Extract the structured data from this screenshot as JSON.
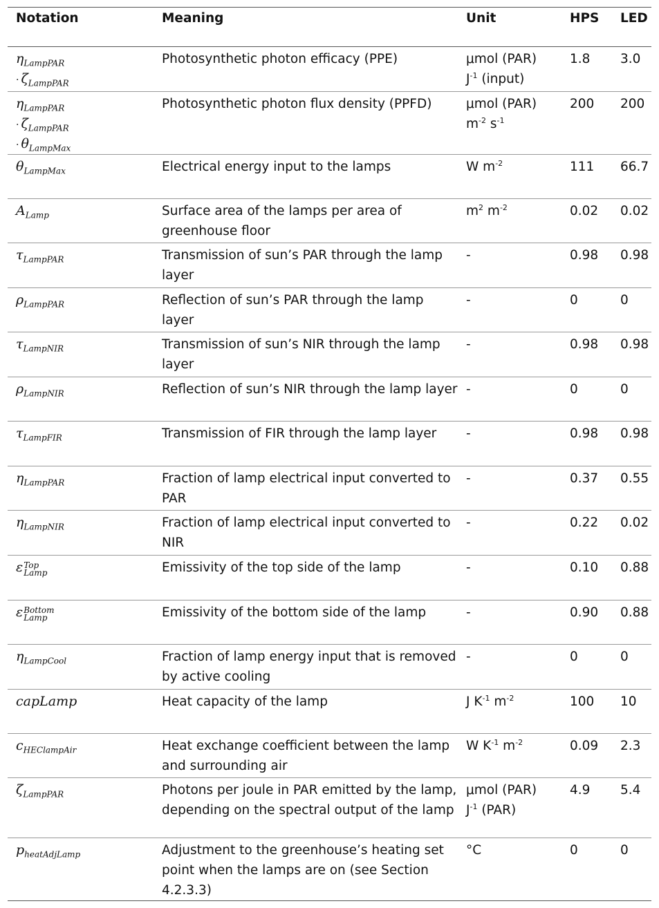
{
  "headers": {
    "notation": "Notation",
    "meaning": "Meaning",
    "unit": "Unit",
    "hps": "HPS",
    "led": "LED"
  },
  "rows": [
    {
      "notation": [
        {
          "dot": false,
          "base": "η",
          "sub": "LampPAR"
        },
        {
          "dot": true,
          "base": "ζ",
          "sub": "LampPAR"
        }
      ],
      "meaning": "Photosynthetic photon efficacy (PPE)",
      "unit": [
        [
          "μmol (PAR)"
        ],
        [
          "J",
          {
            "sup": "-1"
          },
          " (input)"
        ]
      ],
      "hps": "1.8",
      "led": "3.0"
    },
    {
      "notation": [
        {
          "dot": false,
          "base": "η",
          "sub": "LampPAR"
        },
        {
          "dot": true,
          "base": "ζ",
          "sub": "LampPAR"
        },
        {
          "dot": true,
          "base": "θ",
          "sub": "LampMax"
        }
      ],
      "meaning": "Photosynthetic photon flux density (PPFD)",
      "unit": [
        [
          "μmol (PAR)"
        ],
        [
          "m",
          {
            "sup": "-2"
          },
          " s",
          {
            "sup": "-1"
          }
        ]
      ],
      "hps": "200",
      "led": "200"
    },
    {
      "notation": [
        {
          "dot": false,
          "base": "θ",
          "sub": "LampMax"
        }
      ],
      "meaning": "Electrical energy input to the lamps",
      "unit": [
        [
          "W m",
          {
            "sup": "-2"
          }
        ]
      ],
      "hps": "111",
      "led": "66.7"
    },
    {
      "notation": [
        {
          "dot": false,
          "base": "A",
          "sub": "Lamp"
        }
      ],
      "meaning": "Surface area of the lamps per area of greenhouse floor",
      "unit": [
        [
          "m",
          {
            "sup": "2"
          },
          " m",
          {
            "sup": "-2"
          }
        ]
      ],
      "hps": "0.02",
      "led": "0.02"
    },
    {
      "notation": [
        {
          "dot": false,
          "base": "τ",
          "sub": "LampPAR"
        }
      ],
      "meaning": "Transmission of sun’s PAR through the lamp layer",
      "unit": [
        [
          "-"
        ]
      ],
      "hps": "0.98",
      "led": "0.98"
    },
    {
      "notation": [
        {
          "dot": false,
          "base": "ρ",
          "sub": "LampPAR"
        }
      ],
      "meaning": "Reflection of sun’s PAR through the lamp layer",
      "unit": [
        [
          "-"
        ]
      ],
      "hps": "0",
      "led": "0"
    },
    {
      "notation": [
        {
          "dot": false,
          "base": "τ",
          "sub": "LampNIR"
        }
      ],
      "meaning": "Transmission of sun’s NIR through the lamp layer",
      "unit": [
        [
          "-"
        ]
      ],
      "hps": "0.98",
      "led": "0.98"
    },
    {
      "notation": [
        {
          "dot": false,
          "base": "ρ",
          "sub": "LampNIR"
        }
      ],
      "meaning": "Reflection of sun’s NIR through the lamp layer",
      "unit": [
        [
          "-"
        ]
      ],
      "hps": "0",
      "led": "0"
    },
    {
      "notation": [
        {
          "dot": false,
          "base": "τ",
          "sub": "LampFIR"
        }
      ],
      "meaning": "Transmission of FIR through the lamp layer",
      "unit": [
        [
          "-"
        ]
      ],
      "hps": "0.98",
      "led": "0.98"
    },
    {
      "notation": [
        {
          "dot": false,
          "base": "η",
          "sub": "LampPAR"
        }
      ],
      "meaning": "Fraction of lamp electrical input converted to PAR",
      "unit": [
        [
          "-"
        ]
      ],
      "hps": "0.37",
      "led": "0.55"
    },
    {
      "notation": [
        {
          "dot": false,
          "base": "η",
          "sub": "LampNIR"
        }
      ],
      "meaning": "Fraction of lamp electrical input converted to NIR",
      "unit": [
        [
          "-"
        ]
      ],
      "hps": "0.22",
      "led": "0.02"
    },
    {
      "notation": [
        {
          "dot": false,
          "base": "ε",
          "sub": "Lamp",
          "sup": "Top"
        }
      ],
      "meaning": "Emissivity of the top side of the lamp",
      "unit": [
        [
          "-"
        ]
      ],
      "hps": "0.10",
      "led": "0.88"
    },
    {
      "notation": [
        {
          "dot": false,
          "base": "ε",
          "sub": "Lamp",
          "sup": "Bottom"
        }
      ],
      "meaning": "Emissivity of the bottom side of the lamp",
      "unit": [
        [
          "-"
        ]
      ],
      "hps": "0.90",
      "led": "0.88"
    },
    {
      "notation": [
        {
          "dot": false,
          "base": "η",
          "sub": "LampCool"
        }
      ],
      "meaning": "Fraction of lamp energy input that is removed by active cooling",
      "unit": [
        [
          "-"
        ]
      ],
      "hps": "0",
      "led": "0"
    },
    {
      "notation": [
        {
          "dot": false,
          "base": "capLamp",
          "sub": ""
        }
      ],
      "meaning": "Heat capacity of the lamp",
      "unit": [
        [
          "J K",
          {
            "sup": "-1"
          },
          " m",
          {
            "sup": "-2"
          }
        ]
      ],
      "hps": "100",
      "led": "10"
    },
    {
      "notation": [
        {
          "dot": false,
          "base": "c",
          "sub": "HEClampAir"
        }
      ],
      "meaning": "Heat exchange coefficient between the lamp and surrounding air",
      "unit": [
        [
          "W K",
          {
            "sup": "-1"
          },
          " m",
          {
            "sup": "-2"
          }
        ]
      ],
      "hps": "0.09",
      "led": "2.3"
    },
    {
      "notation": [
        {
          "dot": false,
          "base": "ζ",
          "sub": "LampPAR"
        }
      ],
      "meaning": "Photons per joule in PAR emitted by the lamp, depending on the spectral output of the lamp",
      "unit": [
        [
          "μmol (PAR)"
        ],
        [
          "J",
          {
            "sup": "-1"
          },
          " (PAR)"
        ]
      ],
      "hps": "4.9",
      "led": "5.4"
    },
    {
      "notation": [
        {
          "dot": false,
          "base": "p",
          "sub": "heatAdjLamp"
        }
      ],
      "meaning": "Adjustment to the greenhouse’s heating set point when the lamps are on (see Section 4.2.3.3)",
      "unit": [
        [
          "°C"
        ]
      ],
      "hps": "0",
      "led": "0"
    }
  ]
}
